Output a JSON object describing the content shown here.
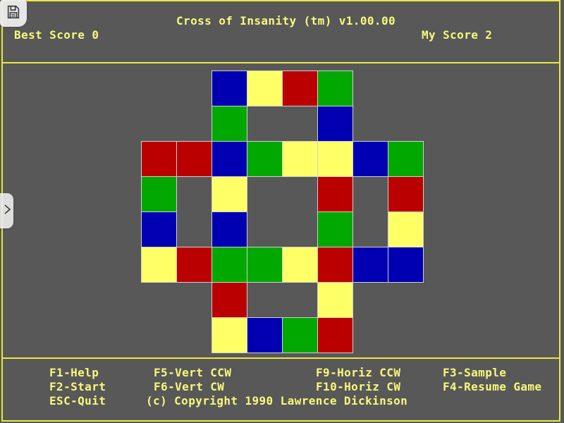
{
  "header": {
    "title": "Cross of Insanity (tm) v1.00.00",
    "best_score_text": "Best Score 0",
    "best_score_value": 0,
    "my_score_text": "My Score 2",
    "my_score_value": 2
  },
  "board": {
    "cells": [
      "..BYRG..",
      "..G..B..",
      "RRBGYYBG",
      "G.Y..R.R",
      "B.B..G.Y",
      "YRGGYRBB",
      "..R..Y..",
      "..YBGR.."
    ],
    "legend": {
      "B": "blue",
      "Y": "yellow",
      "R": "red",
      "G": "green",
      ".": "empty"
    }
  },
  "help": {
    "row1": [
      "F1-Help",
      "F5-Vert CCW",
      "F9-Horiz CCW",
      "F3-Sample"
    ],
    "row2": [
      "F2-Start",
      "F6-Vert CW",
      "F10-Horiz CW",
      "F4-Resume Game"
    ],
    "row3": [
      "ESC-Quit",
      "(c) Copyright 1990 Lawrence Dickinson"
    ]
  },
  "overlays": {
    "save_icon": "floppy-disk",
    "sidebar_toggle_icon": "chevron-right"
  },
  "colors": {
    "background": "#585858",
    "frame_yellow": "#E9E93F",
    "text_yellow": "#F8F87C",
    "cell_border": "#CFCFCF",
    "blue": "#0000B2",
    "yellow": "#FFFF66",
    "red": "#BB0000",
    "green": "#00A800"
  }
}
